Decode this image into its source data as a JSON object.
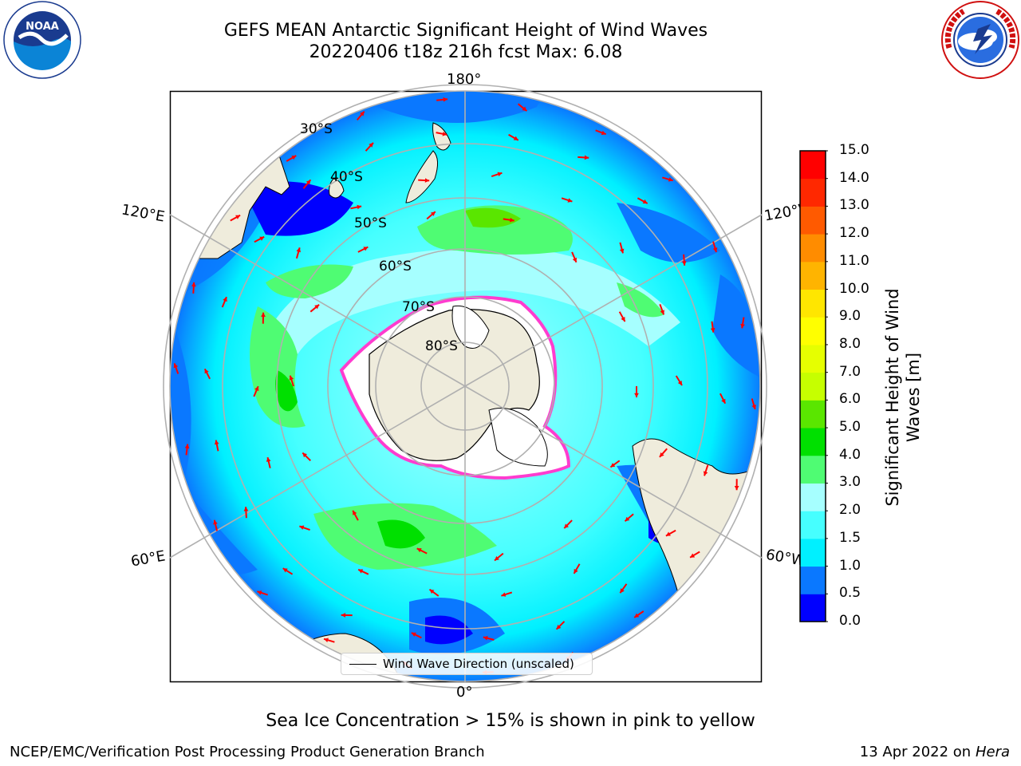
{
  "header": {
    "title_line1": "GEFS MEAN Antarctic Significant Height of Wind Waves",
    "title_line2": "20220406 t18z 216h fcst   Max: 6.08"
  },
  "logos": {
    "left_name": "NOAA",
    "left_ring": "NATIONAL OCEANIC AND ATMOSPHERIC ADMINISTRATION · U.S. DEPARTMENT OF COMMERCE",
    "right_ring": "NATIONAL WEATHER SERVICE"
  },
  "map": {
    "projection": "south-polar-stereographic",
    "longitude_labels": {
      "top": "180°",
      "bottom": "0°",
      "upper_left": "120°E",
      "upper_right": "120°W",
      "lower_left": "60°E",
      "lower_right": "60°W"
    },
    "latitude_labels": [
      "30°S",
      "40°S",
      "50°S",
      "60°S",
      "70°S",
      "80°S"
    ],
    "legend_label": "Wind Wave Direction (unscaled)",
    "colors": {
      "land": "#efecdc",
      "sea_ice": "#ffffff",
      "ice_edge": "#ff3ccf",
      "arrow": "#ff0000",
      "grid": "#b0b0b0"
    }
  },
  "colorbar": {
    "label": "Significant Height of Wind Waves [m]",
    "label_line1": "Significant Height of Wind",
    "label_line2": "Waves [m]",
    "ticks": [
      "0.0",
      "0.5",
      "1.0",
      "1.5",
      "2.0",
      "3.0",
      "4.0",
      "5.0",
      "6.0",
      "7.0",
      "8.0",
      "9.0",
      "10.0",
      "11.0",
      "12.0",
      "13.0",
      "14.0",
      "15.0"
    ],
    "colors": [
      "#0000ff",
      "#0a78ff",
      "#00f0ff",
      "#46ffff",
      "#a6ffff",
      "#4ffc73",
      "#00e000",
      "#5ae600",
      "#c6ff00",
      "#e6ff00",
      "#ffff00",
      "#ffe600",
      "#ffb400",
      "#ff8c00",
      "#ff5a00",
      "#ff2800",
      "#ff0000"
    ]
  },
  "notes": {
    "ice_note": "Sea Ice Concentration > 15% is shown in pink to yellow"
  },
  "footer": {
    "left": "NCEP/EMC/Verification Post Processing Product Generation Branch",
    "right_date": "13 Apr 2022 on",
    "right_host": "Hera"
  }
}
